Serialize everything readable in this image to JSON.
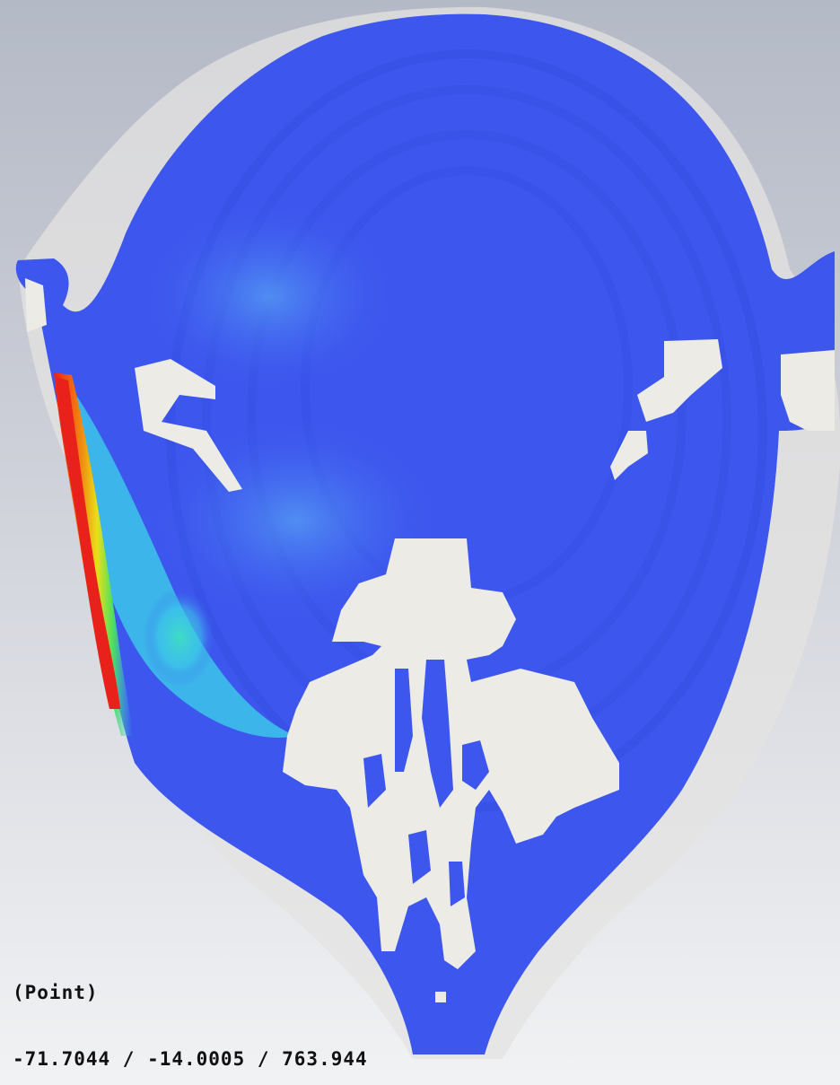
{
  "viewer": {
    "probe_type": "(Point)",
    "probe_coordinates": "-71.7044 / -14.0005 / 763.944"
  },
  "colors": {
    "background_top": "#b4b9c6",
    "background_bottom": "#f1f2f4",
    "contour_low": "#3d56ee",
    "contour_mid": "#38d2e6",
    "contour_high": "#e8221a",
    "tissue_void": "#ecebe6"
  }
}
